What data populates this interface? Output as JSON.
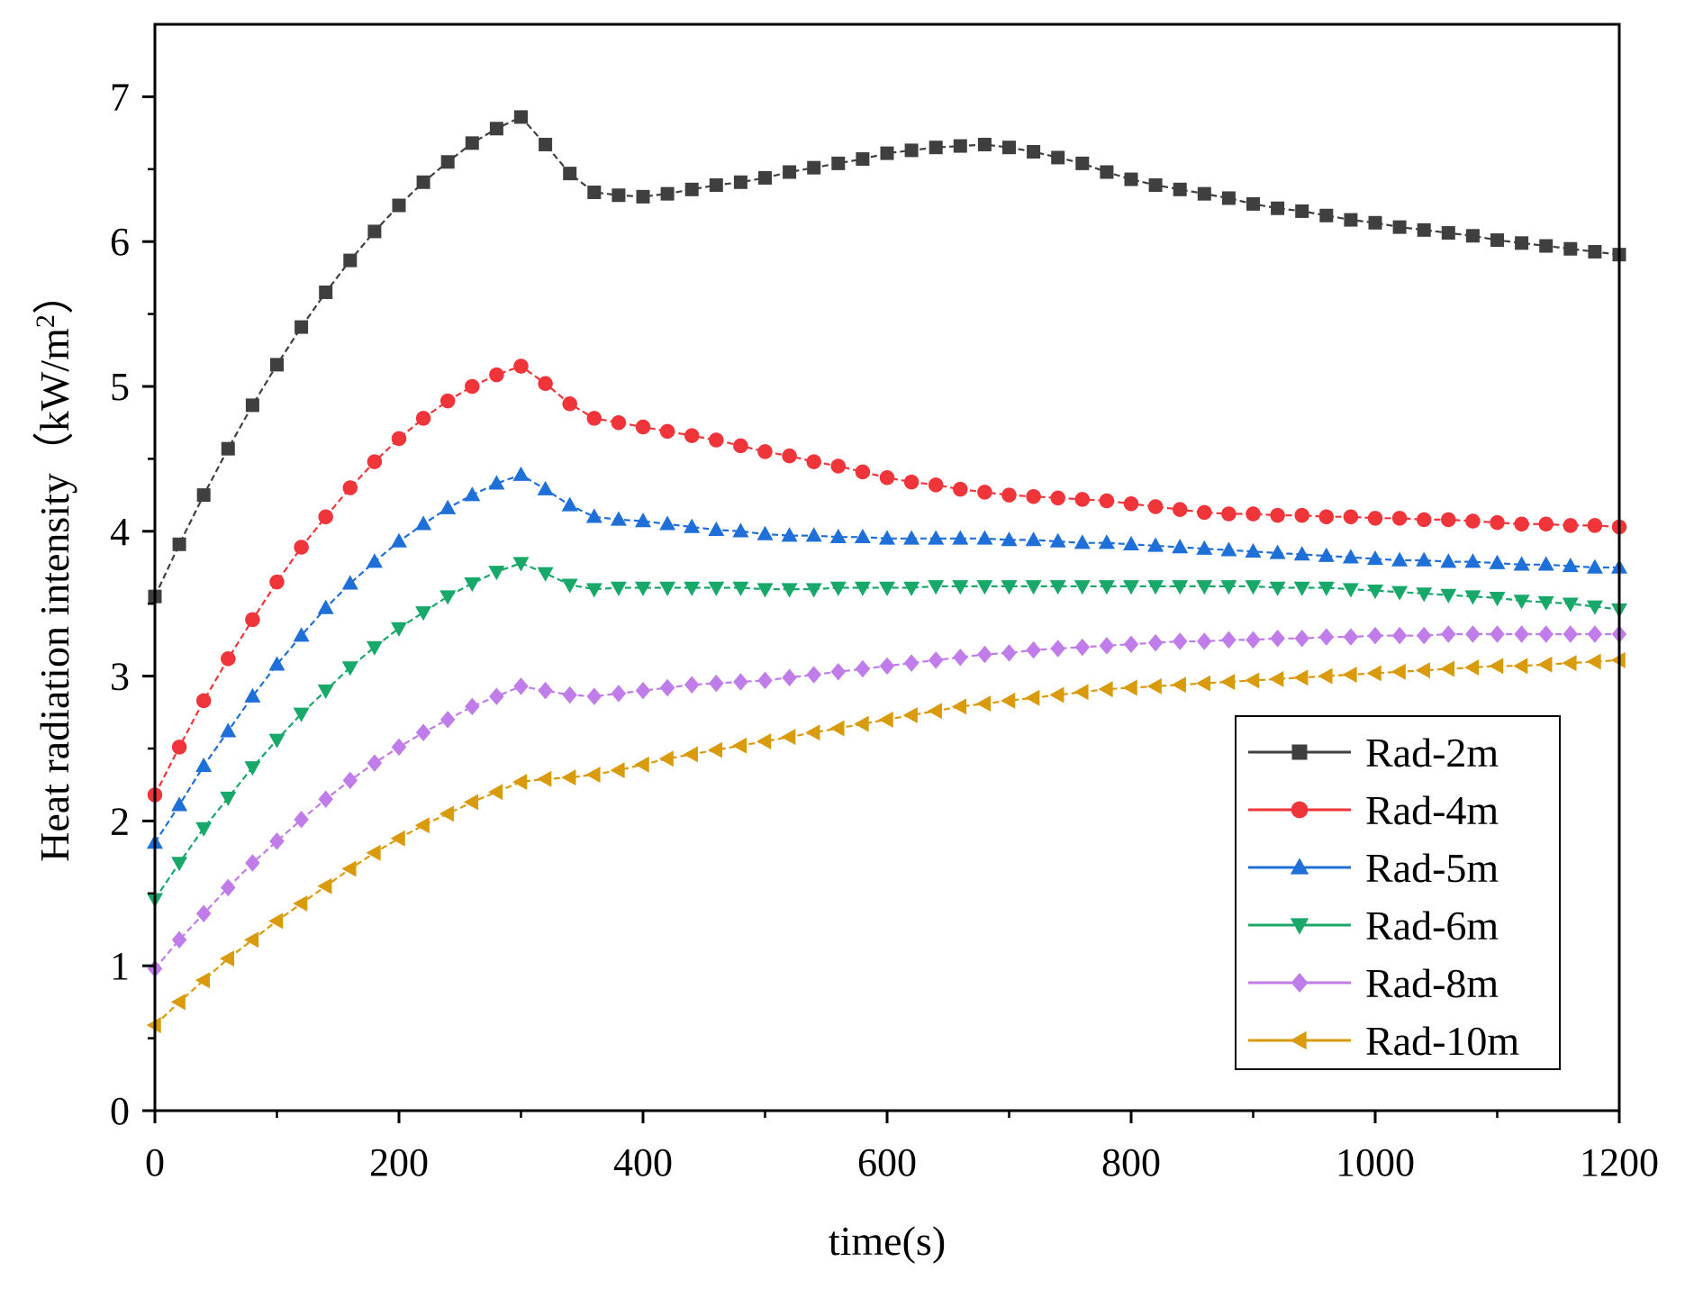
{
  "chart_data": {
    "type": "line",
    "title": "",
    "xlabel": "time(s)",
    "ylabel": "Heat radiation intensity（kW/m",
    "ylabel_sup": "2",
    "ylabel_close": "）",
    "xlim": [
      0,
      1200
    ],
    "ylim": [
      0,
      7.5
    ],
    "xticks": [
      0,
      200,
      400,
      600,
      800,
      1000,
      1200
    ],
    "yticks": [
      0,
      1,
      2,
      3,
      4,
      5,
      6,
      7
    ],
    "grid": false,
    "legend_position": "lower-right",
    "x": [
      0,
      20,
      40,
      60,
      80,
      100,
      120,
      140,
      160,
      180,
      200,
      220,
      240,
      260,
      280,
      300,
      320,
      340,
      360,
      380,
      400,
      420,
      440,
      460,
      480,
      500,
      520,
      540,
      560,
      580,
      600,
      620,
      640,
      660,
      680,
      700,
      720,
      740,
      760,
      780,
      800,
      820,
      840,
      860,
      880,
      900,
      920,
      940,
      960,
      980,
      1000,
      1020,
      1040,
      1060,
      1080,
      1100,
      1120,
      1140,
      1160,
      1180,
      1200
    ],
    "series": [
      {
        "name": "Rad-2m",
        "color": "#3f3f3f",
        "marker": "square",
        "values": [
          3.55,
          3.91,
          4.25,
          4.57,
          4.87,
          5.15,
          5.41,
          5.65,
          5.87,
          6.07,
          6.25,
          6.41,
          6.55,
          6.68,
          6.78,
          6.86,
          6.67,
          6.47,
          6.34,
          6.32,
          6.31,
          6.33,
          6.36,
          6.39,
          6.41,
          6.44,
          6.48,
          6.51,
          6.54,
          6.57,
          6.61,
          6.63,
          6.65,
          6.66,
          6.67,
          6.65,
          6.62,
          6.58,
          6.54,
          6.48,
          6.43,
          6.39,
          6.36,
          6.33,
          6.3,
          6.26,
          6.23,
          6.21,
          6.18,
          6.15,
          6.13,
          6.1,
          6.08,
          6.06,
          6.04,
          6.01,
          5.99,
          5.97,
          5.95,
          5.93,
          5.91
        ]
      },
      {
        "name": "Rad-4m",
        "color": "#f0353a",
        "marker": "circle",
        "values": [
          2.18,
          2.51,
          2.83,
          3.12,
          3.39,
          3.65,
          3.89,
          4.1,
          4.3,
          4.48,
          4.64,
          4.78,
          4.9,
          5.0,
          5.08,
          5.14,
          5.02,
          4.88,
          4.78,
          4.75,
          4.72,
          4.69,
          4.66,
          4.63,
          4.59,
          4.55,
          4.52,
          4.48,
          4.45,
          4.41,
          4.37,
          4.34,
          4.32,
          4.29,
          4.27,
          4.25,
          4.24,
          4.23,
          4.22,
          4.21,
          4.19,
          4.17,
          4.15,
          4.13,
          4.12,
          4.12,
          4.11,
          4.11,
          4.1,
          4.1,
          4.09,
          4.09,
          4.08,
          4.08,
          4.07,
          4.06,
          4.05,
          4.05,
          4.04,
          4.04,
          4.03
        ]
      },
      {
        "name": "Rad-5m",
        "color": "#1f6fd8",
        "marker": "triangle-up",
        "values": [
          1.85,
          2.11,
          2.38,
          2.62,
          2.86,
          3.08,
          3.28,
          3.47,
          3.64,
          3.79,
          3.93,
          4.05,
          4.16,
          4.25,
          4.33,
          4.39,
          4.29,
          4.18,
          4.1,
          4.08,
          4.07,
          4.05,
          4.03,
          4.01,
          4.0,
          3.98,
          3.97,
          3.97,
          3.96,
          3.96,
          3.95,
          3.95,
          3.95,
          3.95,
          3.95,
          3.94,
          3.94,
          3.93,
          3.92,
          3.92,
          3.91,
          3.9,
          3.89,
          3.88,
          3.87,
          3.86,
          3.85,
          3.84,
          3.83,
          3.82,
          3.81,
          3.8,
          3.8,
          3.79,
          3.79,
          3.78,
          3.77,
          3.77,
          3.76,
          3.75,
          3.75
        ]
      },
      {
        "name": "Rad-6m",
        "color": "#18a86a",
        "marker": "triangle-down",
        "values": [
          1.46,
          1.71,
          1.95,
          2.16,
          2.37,
          2.56,
          2.74,
          2.9,
          3.06,
          3.2,
          3.33,
          3.44,
          3.55,
          3.64,
          3.72,
          3.78,
          3.71,
          3.63,
          3.6,
          3.61,
          3.61,
          3.61,
          3.61,
          3.61,
          3.61,
          3.6,
          3.6,
          3.6,
          3.61,
          3.61,
          3.61,
          3.61,
          3.62,
          3.62,
          3.62,
          3.62,
          3.62,
          3.62,
          3.62,
          3.62,
          3.62,
          3.62,
          3.62,
          3.62,
          3.62,
          3.62,
          3.61,
          3.61,
          3.61,
          3.6,
          3.59,
          3.58,
          3.57,
          3.56,
          3.55,
          3.54,
          3.52,
          3.51,
          3.5,
          3.48,
          3.46
        ]
      },
      {
        "name": "Rad-8m",
        "color": "#c07ce8",
        "marker": "diamond",
        "values": [
          0.98,
          1.18,
          1.36,
          1.54,
          1.71,
          1.86,
          2.01,
          2.15,
          2.28,
          2.4,
          2.51,
          2.61,
          2.7,
          2.79,
          2.86,
          2.93,
          2.9,
          2.87,
          2.86,
          2.88,
          2.9,
          2.92,
          2.94,
          2.95,
          2.96,
          2.97,
          2.99,
          3.01,
          3.03,
          3.05,
          3.07,
          3.09,
          3.11,
          3.13,
          3.15,
          3.16,
          3.18,
          3.19,
          3.2,
          3.21,
          3.22,
          3.23,
          3.24,
          3.24,
          3.25,
          3.25,
          3.26,
          3.26,
          3.27,
          3.27,
          3.28,
          3.28,
          3.28,
          3.29,
          3.29,
          3.29,
          3.29,
          3.29,
          3.29,
          3.29,
          3.29
        ]
      },
      {
        "name": "Rad-10m",
        "color": "#d99a0b",
        "marker": "triangle-left",
        "values": [
          0.59,
          0.75,
          0.9,
          1.05,
          1.18,
          1.31,
          1.43,
          1.55,
          1.67,
          1.78,
          1.88,
          1.97,
          2.05,
          2.13,
          2.2,
          2.27,
          2.29,
          2.3,
          2.32,
          2.35,
          2.39,
          2.43,
          2.46,
          2.49,
          2.52,
          2.55,
          2.58,
          2.61,
          2.64,
          2.67,
          2.7,
          2.73,
          2.76,
          2.79,
          2.81,
          2.83,
          2.85,
          2.87,
          2.89,
          2.91,
          2.92,
          2.93,
          2.94,
          2.95,
          2.96,
          2.97,
          2.98,
          2.99,
          3.0,
          3.01,
          3.02,
          3.03,
          3.04,
          3.05,
          3.06,
          3.07,
          3.07,
          3.08,
          3.09,
          3.1,
          3.11
        ]
      }
    ]
  }
}
